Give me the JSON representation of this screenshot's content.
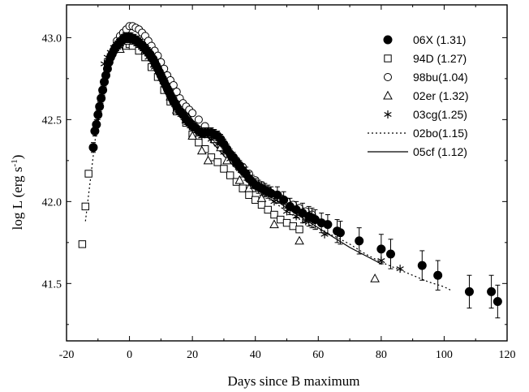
{
  "chart_data": {
    "type": "scatter",
    "title": "",
    "xlabel": "Days since B maximum",
    "ylabel_main": "log L (erg s",
    "ylabel_sup": "-1",
    "ylabel_tail": ")",
    "xlim": [
      -20,
      120
    ],
    "ylim": [
      41.15,
      43.2
    ],
    "xticks": [
      -20,
      0,
      20,
      40,
      60,
      80,
      100,
      120
    ],
    "xtick_labels": [
      "-20",
      "0",
      "20",
      "40",
      "60",
      "80",
      "100",
      "120"
    ],
    "yticks": [
      41.5,
      42.0,
      42.5,
      43.0
    ],
    "ytick_labels": [
      "41.5",
      "42.0",
      "42.5",
      "43.0"
    ],
    "grid": false,
    "legend_position": "top-right",
    "series": [
      {
        "name": "06X (1.31)",
        "marker": "filled-circle",
        "x": [
          -11.5,
          -11,
          -10.5,
          -10,
          -9.5,
          -9,
          -8.5,
          -8,
          -7.5,
          -7,
          -6.5,
          -6,
          -5.5,
          -5,
          -4.5,
          -4,
          -3.5,
          -3,
          -2.5,
          -2,
          -1.5,
          -1,
          -0.5,
          0,
          0.5,
          1,
          1.5,
          2,
          2.5,
          3,
          3.5,
          4,
          4.5,
          5,
          5.5,
          6,
          6.5,
          7,
          7.5,
          8,
          8.5,
          9,
          9.5,
          10,
          10.5,
          11,
          11.5,
          12,
          12.5,
          13,
          13.5,
          14,
          14.5,
          15,
          16,
          17,
          18,
          19,
          20,
          21,
          22,
          23,
          24,
          25,
          26,
          27,
          28,
          29,
          30,
          31,
          32,
          33,
          34,
          35,
          36,
          37,
          38,
          39,
          40,
          41,
          42,
          43,
          44,
          45,
          47,
          49,
          51,
          53,
          55,
          57,
          58,
          59,
          61,
          63,
          66,
          67,
          73,
          80,
          83,
          93,
          98,
          108,
          115,
          117
        ],
        "y": [
          42.33,
          42.43,
          42.47,
          42.53,
          42.58,
          42.63,
          42.68,
          42.73,
          42.77,
          42.81,
          42.85,
          42.88,
          42.9,
          42.92,
          42.94,
          42.95,
          42.96,
          42.97,
          42.98,
          42.99,
          43.0,
          43.0,
          43.0,
          43.0,
          43.0,
          42.99,
          42.99,
          42.98,
          42.98,
          42.97,
          42.96,
          42.95,
          42.94,
          42.93,
          42.92,
          42.91,
          42.9,
          42.88,
          42.87,
          42.85,
          42.83,
          42.81,
          42.79,
          42.77,
          42.75,
          42.73,
          42.71,
          42.69,
          42.67,
          42.65,
          42.63,
          42.61,
          42.6,
          42.58,
          42.55,
          42.53,
          42.5,
          42.48,
          42.46,
          42.45,
          42.43,
          42.42,
          42.42,
          42.42,
          42.42,
          42.41,
          42.4,
          42.38,
          42.35,
          42.32,
          42.29,
          42.27,
          42.24,
          42.22,
          42.19,
          42.17,
          42.14,
          42.12,
          42.1,
          42.09,
          42.08,
          42.07,
          42.06,
          42.05,
          42.04,
          42.01,
          41.97,
          41.95,
          41.93,
          41.91,
          41.9,
          41.89,
          41.87,
          41.86,
          41.82,
          41.81,
          41.76,
          41.71,
          41.68,
          41.61,
          41.55,
          41.45,
          41.45,
          41.39
        ],
        "err": [
          0.03,
          0.03,
          0.03,
          0.03,
          0.03,
          0.03,
          0.03,
          0.03,
          0.03,
          0.03,
          0.03,
          0.03,
          0.03,
          0.03,
          0.03,
          0.03,
          0.03,
          0.03,
          0.03,
          0.03,
          0.03,
          0.03,
          0.03,
          0.03,
          0.03,
          0.03,
          0.03,
          0.03,
          0.03,
          0.03,
          0.03,
          0.03,
          0.03,
          0.03,
          0.03,
          0.03,
          0.03,
          0.03,
          0.03,
          0.03,
          0.03,
          0.03,
          0.03,
          0.03,
          0.03,
          0.03,
          0.03,
          0.03,
          0.03,
          0.03,
          0.03,
          0.03,
          0.03,
          0.03,
          0.03,
          0.03,
          0.03,
          0.03,
          0.03,
          0.03,
          0.03,
          0.03,
          0.03,
          0.03,
          0.03,
          0.03,
          0.03,
          0.03,
          0.03,
          0.03,
          0.03,
          0.03,
          0.03,
          0.03,
          0.04,
          0.04,
          0.04,
          0.04,
          0.04,
          0.04,
          0.04,
          0.04,
          0.04,
          0.04,
          0.05,
          0.05,
          0.05,
          0.05,
          0.06,
          0.06,
          0.06,
          0.06,
          0.06,
          0.06,
          0.07,
          0.07,
          0.08,
          0.09,
          0.09,
          0.09,
          0.09,
          0.1,
          0.1,
          0.1
        ]
      },
      {
        "name": "94D (1.27)",
        "marker": "open-square",
        "x": [
          -15,
          -14,
          -13,
          -1,
          0,
          1,
          3,
          5,
          7,
          9,
          11,
          13,
          15,
          18,
          20,
          22,
          24,
          26,
          28,
          30,
          32,
          34,
          36,
          38,
          40,
          42,
          44,
          46,
          48,
          50,
          52,
          54
        ],
        "y": [
          41.74,
          41.97,
          42.17,
          42.95,
          42.96,
          42.95,
          42.92,
          42.88,
          42.82,
          42.76,
          42.68,
          42.61,
          42.55,
          42.48,
          42.41,
          42.36,
          42.32,
          42.27,
          42.24,
          42.2,
          42.16,
          42.12,
          42.08,
          42.04,
          42.01,
          41.98,
          41.95,
          41.92,
          41.89,
          41.87,
          41.85,
          41.83
        ]
      },
      {
        "name": "98bu(1.04)",
        "marker": "open-circle",
        "x": [
          -4,
          -3,
          -2,
          -1,
          0,
          1,
          2,
          3,
          4,
          5,
          6,
          7,
          8,
          9,
          10,
          11,
          12,
          13,
          14,
          15,
          16,
          17,
          18,
          19,
          20,
          22,
          24,
          26,
          28,
          30,
          32,
          34,
          36,
          38,
          40,
          42,
          44,
          46,
          48,
          50,
          52,
          54,
          56,
          58
        ],
        "y": [
          42.98,
          43.01,
          43.03,
          43.05,
          43.07,
          43.07,
          43.06,
          43.05,
          43.03,
          43.01,
          42.98,
          42.95,
          42.92,
          42.89,
          42.85,
          42.81,
          42.77,
          42.74,
          42.71,
          42.67,
          42.63,
          42.6,
          42.58,
          42.56,
          42.54,
          42.5,
          42.46,
          42.42,
          42.38,
          42.34,
          42.29,
          42.25,
          42.21,
          42.17,
          42.13,
          42.1,
          42.07,
          42.04,
          42.02,
          42.0,
          41.98,
          41.96,
          41.94,
          41.92
        ]
      },
      {
        "name": "02er (1.32)",
        "marker": "open-triangle",
        "x": [
          -3,
          -1,
          2,
          5,
          8,
          11,
          13,
          15,
          18,
          20,
          23,
          25,
          27,
          29,
          31,
          35,
          38,
          42,
          46,
          54,
          78
        ],
        "y": [
          42.93,
          42.98,
          42.99,
          42.92,
          42.84,
          42.74,
          42.64,
          42.56,
          42.5,
          42.4,
          42.31,
          42.25,
          42.38,
          42.33,
          42.25,
          42.13,
          42.08,
          42.02,
          41.86,
          41.76,
          41.53
        ]
      },
      {
        "name": "03cg(1.25)",
        "marker": "asterisk",
        "x": [
          -8,
          -7,
          -6,
          -5,
          -4,
          -3,
          -2,
          -1,
          0,
          1,
          2,
          3,
          4,
          5,
          6,
          8,
          10,
          12,
          15,
          18,
          20,
          23,
          26,
          28,
          30,
          32,
          35,
          38,
          40,
          43,
          46,
          50,
          53,
          56,
          62,
          80,
          86
        ],
        "y": [
          42.84,
          42.88,
          42.91,
          42.94,
          42.96,
          42.98,
          42.99,
          43.0,
          43.0,
          42.99,
          42.98,
          42.96,
          42.94,
          42.91,
          42.88,
          42.82,
          42.75,
          42.68,
          42.6,
          42.52,
          42.45,
          42.4,
          42.38,
          42.35,
          42.3,
          42.26,
          42.2,
          42.14,
          42.1,
          42.05,
          42.0,
          41.94,
          41.91,
          41.88,
          41.8,
          41.64,
          41.59
        ]
      },
      {
        "name": "02bo(1.15)",
        "line": "dotted",
        "x": [
          -14,
          -12,
          -10,
          -8,
          -6,
          -4,
          -2,
          0,
          2,
          5,
          10,
          15,
          20,
          25,
          30,
          35,
          40,
          45,
          50,
          55,
          60,
          65,
          70,
          75,
          80,
          85,
          90,
          95,
          100,
          102
        ],
        "y": [
          41.88,
          42.2,
          42.52,
          42.74,
          42.86,
          42.93,
          42.97,
          42.99,
          42.98,
          42.93,
          42.79,
          42.64,
          42.5,
          42.39,
          42.28,
          42.17,
          42.09,
          42.01,
          41.94,
          41.88,
          41.83,
          41.79,
          41.74,
          41.68,
          41.63,
          41.59,
          41.55,
          41.51,
          41.48,
          41.46
        ]
      },
      {
        "name": "05cf (1.12)",
        "line": "solid",
        "x": [
          -10,
          -8,
          -6,
          -4,
          -2,
          0,
          2,
          5,
          10,
          15,
          20,
          25,
          30,
          35,
          40,
          45,
          50,
          55,
          60,
          65,
          70,
          75,
          80
        ],
        "y": [
          42.48,
          42.72,
          42.86,
          42.93,
          42.97,
          42.99,
          42.98,
          42.93,
          42.78,
          42.63,
          42.5,
          42.39,
          42.28,
          42.18,
          42.1,
          42.03,
          41.96,
          41.9,
          41.84,
          41.78,
          41.72,
          41.67,
          41.62
        ]
      }
    ]
  }
}
